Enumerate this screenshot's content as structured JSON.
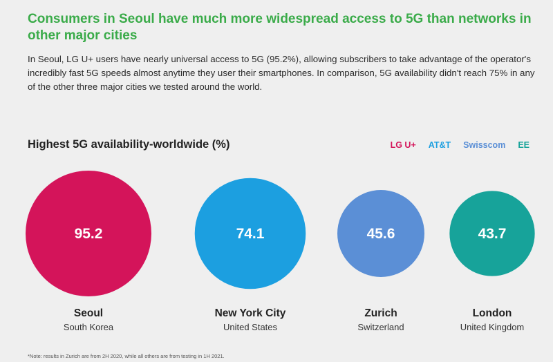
{
  "headline": "Consumers in Seoul have much more widespread access to 5G than networks in other major cities",
  "intro": "In Seoul, LG U+ users have nearly universal access to 5G (95.2%), allowing subscribers to take advantage of the operator's incredibly fast 5G speeds almost anytime they user their smartphones. In comparison, 5G availability didn't reach 75% in any of the other three major cities we tested around the world.",
  "footnote": "*Note: results in Zurich are from 2H 2020, while all others are from testing in 1H 2021.",
  "colors": {
    "headline": "#3aab49",
    "lgu": "#d4145a",
    "att": "#1c9fe0",
    "swisscom": "#5b8fd6",
    "ee": "#17a39a",
    "background": "#efefef"
  },
  "chart_data": {
    "type": "bubble",
    "title": "Highest 5G availability-worldwide (%)",
    "legend_position": "top-right",
    "legend": [
      {
        "name": "LG U+",
        "color": "#d4145a"
      },
      {
        "name": "AT&T",
        "color": "#1c9fe0"
      },
      {
        "name": "Swisscom",
        "color": "#5b8fd6"
      },
      {
        "name": "EE",
        "color": "#17a39a"
      }
    ],
    "points": [
      {
        "city": "Seoul",
        "country": "South Korea",
        "operator": "LG U+",
        "value": 95.2,
        "label": "95.2",
        "color": "#d4145a"
      },
      {
        "city": "New York City",
        "country": "United States",
        "operator": "AT&T",
        "value": 74.1,
        "label": "74.1",
        "color": "#1c9fe0"
      },
      {
        "city": "Zurich",
        "country": "Switzerland",
        "operator": "Swisscom",
        "value": 45.6,
        "label": "45.6",
        "color": "#5b8fd6"
      },
      {
        "city": "London",
        "country": "United Kingdom",
        "operator": "EE",
        "value": 43.7,
        "label": "43.7",
        "color": "#17a39a"
      }
    ]
  }
}
